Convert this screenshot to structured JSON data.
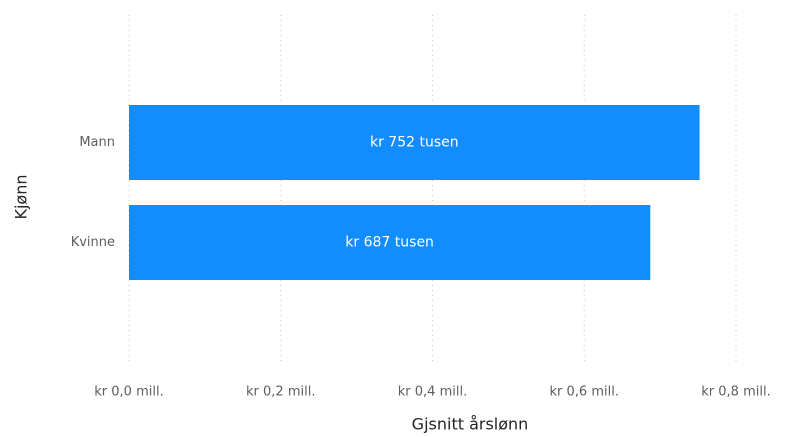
{
  "chart_data": {
    "type": "bar",
    "orientation": "horizontal",
    "x_label": "Gjsnitt årslønn",
    "y_label": "Kjønn",
    "categories": [
      "Mann",
      "Kvinne"
    ],
    "values": [
      0.752,
      0.687
    ],
    "value_labels": [
      "kr 752 tusen",
      "kr 687 tusen"
    ],
    "color": "#118DFF",
    "xlim": [
      0,
      0.8
    ],
    "xticks": [
      {
        "value": 0,
        "label": "kr 0,0 mill."
      },
      {
        "value": 0.2,
        "label": "kr 0,2 mill."
      },
      {
        "value": 0.4,
        "label": "kr 0,4 mill."
      },
      {
        "value": 0.6,
        "label": "kr 0,6 mill."
      },
      {
        "value": 0.8,
        "label": "kr 0,8 mill."
      }
    ],
    "grid": true
  }
}
